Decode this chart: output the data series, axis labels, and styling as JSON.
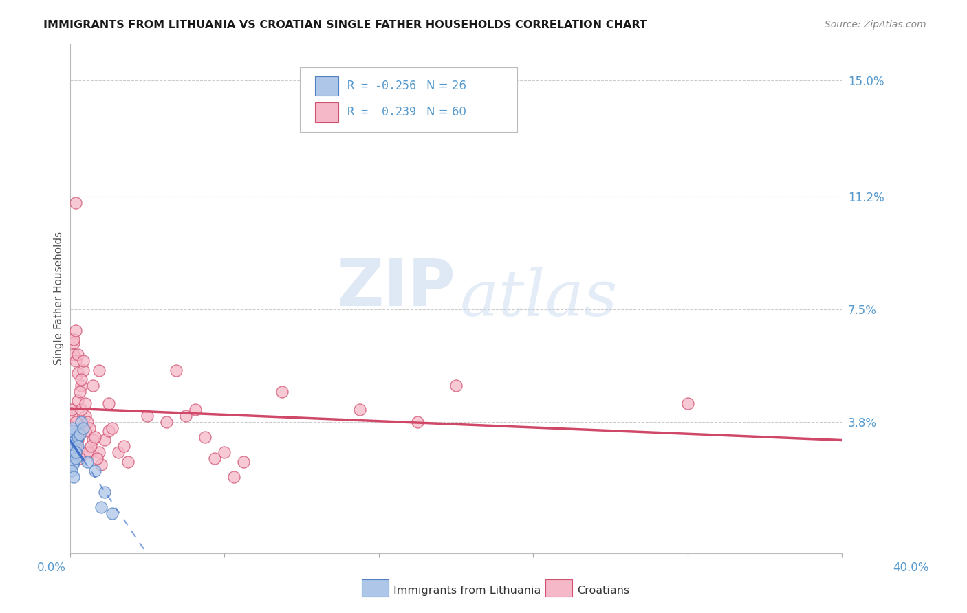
{
  "title": "IMMIGRANTS FROM LITHUANIA VS CROATIAN SINGLE FATHER HOUSEHOLDS CORRELATION CHART",
  "source": "Source: ZipAtlas.com",
  "ylabel": "Single Father Households",
  "ytick_labels": [
    "15.0%",
    "11.2%",
    "7.5%",
    "3.8%"
  ],
  "ytick_vals": [
    0.15,
    0.112,
    0.075,
    0.038
  ],
  "xmin": 0.0,
  "xmax": 0.4,
  "ymin": -0.005,
  "ymax": 0.162,
  "blue_fill": "#aec6e8",
  "blue_edge": "#5080c0",
  "pink_fill": "#f5b8c8",
  "pink_edge": "#d05070",
  "blue_line": "#4070c8",
  "pink_line": "#d04868",
  "grid_color": "#cccccc",
  "bg_color": "#ffffff",
  "tick_color": "#5599cc",
  "blue_scatter": [
    [
      0.0005,
      0.034
    ],
    [
      0.001,
      0.033
    ],
    [
      0.0015,
      0.035
    ],
    [
      0.001,
      0.03
    ],
    [
      0.002,
      0.028
    ],
    [
      0.003,
      0.032
    ],
    [
      0.0008,
      0.031
    ],
    [
      0.002,
      0.029
    ],
    [
      0.0012,
      0.036
    ],
    [
      0.0007,
      0.027
    ],
    [
      0.004,
      0.033
    ],
    [
      0.002,
      0.025
    ],
    [
      0.0015,
      0.024
    ],
    [
      0.0009,
      0.022
    ],
    [
      0.003,
      0.026
    ],
    [
      0.005,
      0.034
    ],
    [
      0.006,
      0.038
    ],
    [
      0.007,
      0.036
    ],
    [
      0.004,
      0.03
    ],
    [
      0.003,
      0.028
    ],
    [
      0.002,
      0.02
    ],
    [
      0.009,
      0.025
    ],
    [
      0.013,
      0.022
    ],
    [
      0.016,
      0.01
    ],
    [
      0.018,
      0.015
    ],
    [
      0.022,
      0.008
    ]
  ],
  "pink_scatter": [
    [
      0.001,
      0.035
    ],
    [
      0.002,
      0.064
    ],
    [
      0.003,
      0.03
    ],
    [
      0.001,
      0.04
    ],
    [
      0.002,
      0.06
    ],
    [
      0.003,
      0.058
    ],
    [
      0.004,
      0.054
    ],
    [
      0.002,
      0.065
    ],
    [
      0.003,
      0.068
    ],
    [
      0.001,
      0.042
    ],
    [
      0.004,
      0.045
    ],
    [
      0.005,
      0.035
    ],
    [
      0.003,
      0.11
    ],
    [
      0.006,
      0.05
    ],
    [
      0.004,
      0.06
    ],
    [
      0.005,
      0.048
    ],
    [
      0.007,
      0.055
    ],
    [
      0.008,
      0.04
    ],
    [
      0.006,
      0.042
    ],
    [
      0.009,
      0.038
    ],
    [
      0.01,
      0.036
    ],
    [
      0.008,
      0.044
    ],
    [
      0.012,
      0.032
    ],
    [
      0.01,
      0.028
    ],
    [
      0.015,
      0.028
    ],
    [
      0.012,
      0.05
    ],
    [
      0.018,
      0.032
    ],
    [
      0.02,
      0.035
    ],
    [
      0.015,
      0.055
    ],
    [
      0.008,
      0.035
    ],
    [
      0.009,
      0.028
    ],
    [
      0.011,
      0.03
    ],
    [
      0.013,
      0.033
    ],
    [
      0.016,
      0.024
    ],
    [
      0.014,
      0.026
    ],
    [
      0.003,
      0.038
    ],
    [
      0.004,
      0.032
    ],
    [
      0.005,
      0.026
    ],
    [
      0.006,
      0.052
    ],
    [
      0.007,
      0.058
    ],
    [
      0.02,
      0.044
    ],
    [
      0.022,
      0.036
    ],
    [
      0.025,
      0.028
    ],
    [
      0.028,
      0.03
    ],
    [
      0.03,
      0.025
    ],
    [
      0.11,
      0.048
    ],
    [
      0.15,
      0.042
    ],
    [
      0.18,
      0.038
    ],
    [
      0.2,
      0.05
    ],
    [
      0.32,
      0.044
    ],
    [
      0.04,
      0.04
    ],
    [
      0.05,
      0.038
    ],
    [
      0.055,
      0.055
    ],
    [
      0.06,
      0.04
    ],
    [
      0.065,
      0.042
    ],
    [
      0.07,
      0.033
    ],
    [
      0.075,
      0.026
    ],
    [
      0.08,
      0.028
    ],
    [
      0.085,
      0.02
    ],
    [
      0.09,
      0.025
    ]
  ],
  "watermark_zip": "ZIP",
  "watermark_atlas": "atlas",
  "legend_r1": "R = -0.256",
  "legend_n1": "N = 26",
  "legend_r2": "R =  0.239",
  "legend_n2": "N = 60"
}
